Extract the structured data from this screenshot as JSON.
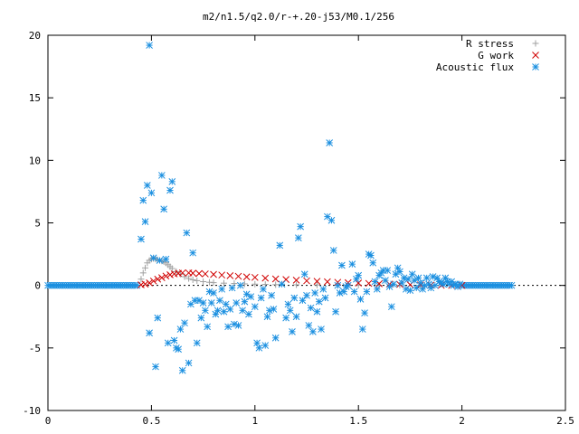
{
  "chart_data": {
    "type": "scatter",
    "title": "m2/n1.5/q2.0/r-+.20-j53/M0.1/256",
    "xlabel": "",
    "ylabel": "",
    "xlim": [
      0,
      2.5
    ],
    "ylim": [
      -10,
      20
    ],
    "x_ticks": [
      "0",
      "0.5",
      "1",
      "1.5",
      "2",
      "2.5"
    ],
    "y_ticks": [
      "-10",
      "-5",
      "0",
      "5",
      "10",
      "15",
      "20"
    ],
    "x_tick_values": [
      0,
      0.5,
      1,
      1.5,
      2,
      2.5
    ],
    "y_tick_values": [
      -10,
      -5,
      0,
      5,
      10,
      15,
      20
    ],
    "grid": false,
    "legend_position": "top-right",
    "series": [
      {
        "name": "R stress",
        "marker": "plus",
        "color": "#a0a0a0",
        "points": [
          [
            0.45,
            0.5
          ],
          [
            0.46,
            1.0
          ],
          [
            0.47,
            1.4
          ],
          [
            0.48,
            1.8
          ],
          [
            0.49,
            2.0
          ],
          [
            0.5,
            2.1
          ],
          [
            0.51,
            2.15
          ],
          [
            0.52,
            2.1
          ],
          [
            0.53,
            2.05
          ],
          [
            0.54,
            2.0
          ],
          [
            0.55,
            1.95
          ],
          [
            0.56,
            1.9
          ],
          [
            0.57,
            1.8
          ],
          [
            0.58,
            1.65
          ],
          [
            0.59,
            1.5
          ],
          [
            0.6,
            1.35
          ],
          [
            0.62,
            1.1
          ],
          [
            0.64,
            0.9
          ],
          [
            0.66,
            0.7
          ],
          [
            0.68,
            0.55
          ],
          [
            0.7,
            0.45
          ],
          [
            0.72,
            0.38
          ],
          [
            0.75,
            0.3
          ],
          [
            0.78,
            0.25
          ],
          [
            0.8,
            0.22
          ],
          [
            0.85,
            0.18
          ],
          [
            0.9,
            0.15
          ],
          [
            0.95,
            0.12
          ],
          [
            1.0,
            0.1
          ],
          [
            1.05,
            0.08
          ],
          [
            1.1,
            0.06
          ],
          [
            1.2,
            0.05
          ],
          [
            1.3,
            0.04
          ],
          [
            1.4,
            0.03
          ],
          [
            1.5,
            0.02
          ],
          [
            1.6,
            0.01
          ],
          [
            1.7,
            0.01
          ],
          [
            1.8,
            0.0
          ]
        ]
      },
      {
        "name": "G work",
        "marker": "cross",
        "color": "#d00000",
        "points": [
          [
            0.45,
            0.05
          ],
          [
            0.47,
            0.1
          ],
          [
            0.49,
            0.2
          ],
          [
            0.51,
            0.35
          ],
          [
            0.53,
            0.5
          ],
          [
            0.55,
            0.62
          ],
          [
            0.57,
            0.75
          ],
          [
            0.59,
            0.85
          ],
          [
            0.61,
            0.92
          ],
          [
            0.63,
            0.97
          ],
          [
            0.65,
            1.0
          ],
          [
            0.68,
            1.0
          ],
          [
            0.7,
            0.98
          ],
          [
            0.73,
            0.95
          ],
          [
            0.76,
            0.92
          ],
          [
            0.8,
            0.88
          ],
          [
            0.84,
            0.83
          ],
          [
            0.88,
            0.78
          ],
          [
            0.92,
            0.73
          ],
          [
            0.96,
            0.68
          ],
          [
            1.0,
            0.64
          ],
          [
            1.05,
            0.58
          ],
          [
            1.1,
            0.52
          ],
          [
            1.15,
            0.47
          ],
          [
            1.2,
            0.42
          ],
          [
            1.25,
            0.37
          ],
          [
            1.3,
            0.33
          ],
          [
            1.35,
            0.29
          ],
          [
            1.4,
            0.25
          ],
          [
            1.45,
            0.22
          ],
          [
            1.5,
            0.19
          ],
          [
            1.55,
            0.16
          ],
          [
            1.6,
            0.13
          ],
          [
            1.65,
            0.1
          ],
          [
            1.7,
            0.08
          ],
          [
            1.75,
            0.06
          ],
          [
            1.8,
            0.04
          ],
          [
            1.85,
            0.02
          ],
          [
            1.9,
            0.01
          ],
          [
            1.95,
            0.0
          ],
          [
            2.0,
            0.0
          ]
        ]
      },
      {
        "name": "Acoustic flux",
        "marker": "star",
        "color": "#1a8fe0",
        "points": [
          [
            0.45,
            3.7
          ],
          [
            0.46,
            6.8
          ],
          [
            0.47,
            5.1
          ],
          [
            0.48,
            8.0
          ],
          [
            0.49,
            -3.8
          ],
          [
            0.49,
            19.2
          ],
          [
            0.5,
            7.4
          ],
          [
            0.51,
            2.2
          ],
          [
            0.52,
            -6.5
          ],
          [
            0.53,
            -2.6
          ],
          [
            0.54,
            2.0
          ],
          [
            0.55,
            8.8
          ],
          [
            0.56,
            6.1
          ],
          [
            0.57,
            2.1
          ],
          [
            0.58,
            -4.6
          ],
          [
            0.59,
            7.6
          ],
          [
            0.6,
            8.3
          ],
          [
            0.61,
            -4.4
          ],
          [
            0.62,
            -5.0
          ],
          [
            0.63,
            -5.1
          ],
          [
            0.64,
            -3.5
          ],
          [
            0.65,
            -6.8
          ],
          [
            0.66,
            -3.0
          ],
          [
            0.67,
            4.2
          ],
          [
            0.68,
            -6.2
          ],
          [
            0.69,
            -1.5
          ],
          [
            0.7,
            2.6
          ],
          [
            0.71,
            -1.2
          ],
          [
            0.72,
            -4.6
          ],
          [
            0.73,
            -1.2
          ],
          [
            0.74,
            -2.6
          ],
          [
            0.75,
            -1.4
          ],
          [
            0.76,
            -2.0
          ],
          [
            0.77,
            -3.3
          ],
          [
            0.78,
            -0.5
          ],
          [
            0.79,
            -1.4
          ],
          [
            0.8,
            -0.6
          ],
          [
            0.81,
            -2.3
          ],
          [
            0.82,
            -2.0
          ],
          [
            0.83,
            -1.2
          ],
          [
            0.84,
            -0.3
          ],
          [
            0.85,
            -2.1
          ],
          [
            0.86,
            -1.5
          ],
          [
            0.87,
            -3.3
          ],
          [
            0.88,
            -1.9
          ],
          [
            0.89,
            -0.2
          ],
          [
            0.9,
            -3.1
          ],
          [
            0.91,
            -1.4
          ],
          [
            0.92,
            -3.2
          ],
          [
            0.93,
            0.0
          ],
          [
            0.94,
            -2.0
          ],
          [
            0.95,
            -1.3
          ],
          [
            0.96,
            -0.7
          ],
          [
            0.97,
            -2.3
          ],
          [
            0.98,
            -0.9
          ],
          [
            1.0,
            -1.7
          ],
          [
            1.01,
            -4.6
          ],
          [
            1.02,
            -5.0
          ],
          [
            1.03,
            -1.0
          ],
          [
            1.04,
            -0.3
          ],
          [
            1.05,
            -4.8
          ],
          [
            1.06,
            -2.5
          ],
          [
            1.07,
            -2.0
          ],
          [
            1.08,
            -0.8
          ],
          [
            1.09,
            -1.9
          ],
          [
            1.1,
            -4.2
          ],
          [
            1.12,
            3.2
          ],
          [
            1.13,
            0.1
          ],
          [
            1.15,
            -2.6
          ],
          [
            1.16,
            -1.5
          ],
          [
            1.17,
            -2.0
          ],
          [
            1.18,
            -3.7
          ],
          [
            1.19,
            -1.0
          ],
          [
            1.2,
            -2.5
          ],
          [
            1.21,
            3.8
          ],
          [
            1.22,
            4.7
          ],
          [
            1.23,
            -1.2
          ],
          [
            1.24,
            0.9
          ],
          [
            1.25,
            -0.8
          ],
          [
            1.26,
            -3.2
          ],
          [
            1.27,
            -1.8
          ],
          [
            1.28,
            -3.7
          ],
          [
            1.29,
            -0.6
          ],
          [
            1.3,
            -2.1
          ],
          [
            1.31,
            -1.3
          ],
          [
            1.32,
            -3.5
          ],
          [
            1.33,
            -0.3
          ],
          [
            1.34,
            -1.0
          ],
          [
            1.35,
            5.5
          ],
          [
            1.36,
            11.4
          ],
          [
            1.37,
            5.2
          ],
          [
            1.38,
            2.8
          ],
          [
            1.39,
            -2.1
          ],
          [
            1.4,
            0.0
          ],
          [
            1.41,
            -0.6
          ],
          [
            1.42,
            1.6
          ],
          [
            1.43,
            -0.5
          ],
          [
            1.44,
            -0.1
          ],
          [
            1.45,
            0.0
          ],
          [
            1.47,
            1.7
          ],
          [
            1.48,
            -0.5
          ],
          [
            1.49,
            0.5
          ],
          [
            1.5,
            0.8
          ],
          [
            1.51,
            -1.1
          ],
          [
            1.52,
            -3.5
          ],
          [
            1.53,
            -2.2
          ],
          [
            1.54,
            -0.5
          ],
          [
            1.55,
            2.5
          ],
          [
            1.56,
            2.4
          ],
          [
            1.57,
            1.8
          ],
          [
            1.58,
            0.3
          ],
          [
            1.59,
            -0.3
          ],
          [
            1.6,
            0.8
          ],
          [
            1.61,
            1.0
          ],
          [
            1.62,
            1.2
          ],
          [
            1.63,
            0.4
          ],
          [
            1.64,
            1.2
          ],
          [
            1.65,
            -0.1
          ],
          [
            1.66,
            -1.7
          ],
          [
            1.67,
            0.1
          ],
          [
            1.68,
            0.9
          ],
          [
            1.69,
            1.4
          ],
          [
            1.7,
            1.1
          ],
          [
            1.71,
            0.2
          ],
          [
            1.72,
            0.6
          ],
          [
            1.73,
            -0.3
          ],
          [
            1.74,
            0.5
          ],
          [
            1.75,
            -0.4
          ],
          [
            1.76,
            0.9
          ],
          [
            1.77,
            0.4
          ],
          [
            1.78,
            -0.2
          ],
          [
            1.79,
            0.6
          ],
          [
            1.8,
            0.2
          ],
          [
            1.81,
            -0.3
          ],
          [
            1.82,
            0.0
          ],
          [
            1.83,
            0.6
          ],
          [
            1.84,
            0.1
          ],
          [
            1.85,
            -0.2
          ],
          [
            1.86,
            0.7
          ],
          [
            1.87,
            0.0
          ],
          [
            1.88,
            0.6
          ],
          [
            1.89,
            0.3
          ],
          [
            1.9,
            0.2
          ],
          [
            1.91,
            0.1
          ],
          [
            1.92,
            0.6
          ],
          [
            1.93,
            0.3
          ],
          [
            1.94,
            0.1
          ],
          [
            1.95,
            0.3
          ],
          [
            1.96,
            0.0
          ],
          [
            1.97,
            0.1
          ],
          [
            1.98,
            -0.1
          ],
          [
            1.99,
            0.1
          ]
        ]
      }
    ]
  }
}
